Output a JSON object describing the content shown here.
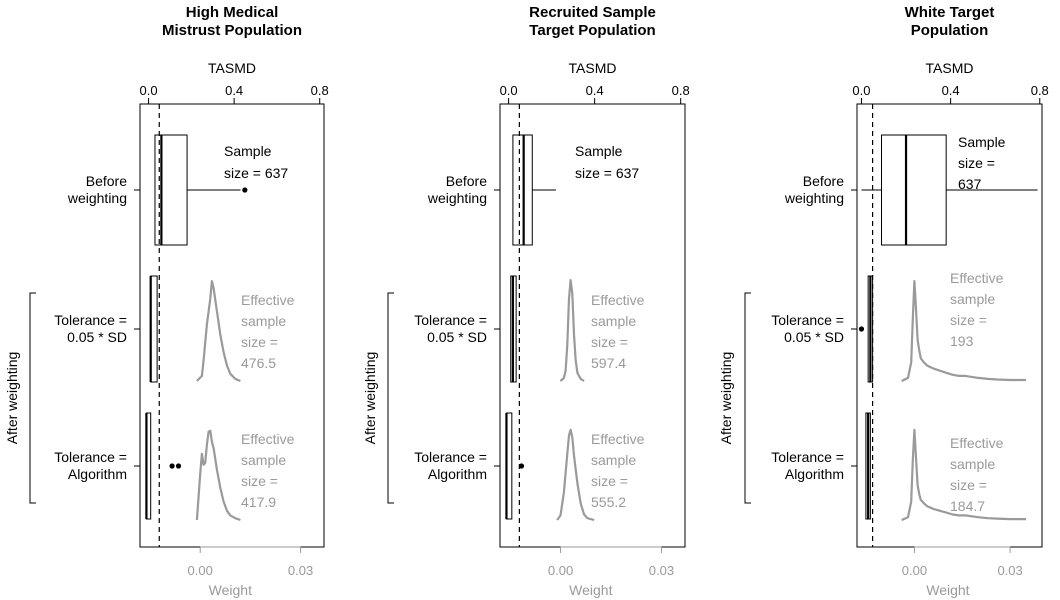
{
  "chart_data": [
    {
      "type": "boxplot",
      "title": [
        "High Medical",
        "Mistrust Population"
      ],
      "top_axis": {
        "label": "TASMD",
        "ticks": [
          "0.0",
          "0.4",
          "0.8"
        ],
        "ticks_num": [
          0.0,
          0.4,
          0.8
        ],
        "range": [
          -0.04,
          0.82
        ]
      },
      "bottom_axis": {
        "label": "Weight",
        "ticks": [
          "0.00",
          "0.03"
        ],
        "ticks_num": [
          0.0,
          0.03
        ],
        "range": [
          -0.018,
          0.037
        ]
      },
      "threshold_line": 0.05,
      "rows": [
        {
          "label": [
            "Before",
            "weighting"
          ],
          "box": {
            "whisker_low": 0.03,
            "q1": 0.03,
            "median": 0.06,
            "q3": 0.18,
            "whisker_high": 0.43
          },
          "outliers": [
            0.45
          ],
          "annotation": [
            "Sample",
            "size = 637"
          ]
        },
        {
          "label": [
            "Tolerance =",
            "0.05 * SD"
          ],
          "box": {
            "whisker_low": 0.01,
            "q1": 0.01,
            "median": 0.01,
            "q3": 0.04,
            "whisker_high": 0.04
          },
          "outliers": [],
          "annotation": [
            "Effective",
            "sample",
            "size =",
            "476.5"
          ],
          "density": {
            "x": [
              -0.001,
              0.0005,
              0.001,
              0.002,
              0.003,
              0.0035,
              0.004,
              0.005,
              0.006,
              0.007,
              0.008,
              0.009,
              0.0105,
              0.012
            ],
            "y": [
              0.0,
              0.05,
              0.2,
              0.55,
              0.8,
              0.97,
              0.9,
              0.68,
              0.45,
              0.28,
              0.15,
              0.07,
              0.02,
              0.0
            ]
          }
        },
        {
          "label": [
            "Tolerance =",
            "Algorithm"
          ],
          "box": {
            "whisker_low": -0.01,
            "q1": -0.01,
            "median": -0.01,
            "q3": 0.01,
            "whisker_high": 0.01
          },
          "outliers": [
            0.11,
            0.14
          ],
          "annotation": [
            "Effective",
            "sample",
            "size =",
            "417.9"
          ],
          "density": {
            "x": [
              -0.001,
              0.0,
              0.0005,
              0.001,
              0.0015,
              0.002,
              0.0025,
              0.003,
              0.0035,
              0.004,
              0.005,
              0.006,
              0.007,
              0.008,
              0.009,
              0.0105,
              0.012
            ],
            "y": [
              0.0,
              0.5,
              0.72,
              0.6,
              0.62,
              0.82,
              0.96,
              0.97,
              0.85,
              0.78,
              0.55,
              0.35,
              0.2,
              0.1,
              0.05,
              0.02,
              0.0
            ]
          }
        }
      ]
    },
    {
      "type": "boxplot",
      "title": [
        "Recruited Sample",
        "Target Population"
      ],
      "top_axis": {
        "label": "TASMD",
        "ticks": [
          "0.0",
          "0.4",
          "0.8"
        ],
        "ticks_num": [
          0.0,
          0.4,
          0.8
        ],
        "range": [
          -0.04,
          0.82
        ]
      },
      "bottom_axis": {
        "label": "Weight",
        "ticks": [
          "0.00",
          "0.03"
        ],
        "ticks_num": [
          0.0,
          0.03
        ],
        "range": [
          -0.018,
          0.037
        ]
      },
      "threshold_line": 0.05,
      "rows": [
        {
          "label": [
            "Before",
            "weighting"
          ],
          "box": {
            "whisker_low": 0.02,
            "q1": 0.02,
            "median": 0.07,
            "q3": 0.11,
            "whisker_high": 0.22
          },
          "outliers": [],
          "annotation": [
            "Sample",
            "size = 637"
          ]
        },
        {
          "label": [
            "Tolerance =",
            "0.05 * SD"
          ],
          "box": {
            "whisker_low": 0.01,
            "q1": 0.01,
            "median": 0.02,
            "q3": 0.035,
            "whisker_high": 0.035
          },
          "outliers": [],
          "annotation": [
            "Effective",
            "sample",
            "size =",
            "597.4"
          ],
          "density": {
            "x": [
              0.0,
              0.001,
              0.0015,
              0.002,
              0.0025,
              0.003,
              0.0035,
              0.004,
              0.0045,
              0.005,
              0.006,
              0.007
            ],
            "y": [
              0.0,
              0.03,
              0.1,
              0.35,
              0.8,
              0.98,
              0.85,
              0.45,
              0.2,
              0.08,
              0.02,
              0.0
            ]
          }
        },
        {
          "label": [
            "Tolerance =",
            "Algorithm"
          ],
          "box": {
            "whisker_low": -0.01,
            "q1": -0.01,
            "median": -0.01,
            "q3": 0.015,
            "whisker_high": 0.015
          },
          "outliers": [
            0.06
          ],
          "annotation": [
            "Effective",
            "sample",
            "size =",
            "555.2"
          ],
          "density": {
            "x": [
              -0.001,
              0.0,
              0.001,
              0.002,
              0.0025,
              0.003,
              0.0035,
              0.004,
              0.005,
              0.006,
              0.007,
              0.008,
              0.01
            ],
            "y": [
              0.0,
              0.05,
              0.3,
              0.72,
              0.92,
              0.98,
              0.9,
              0.7,
              0.4,
              0.18,
              0.06,
              0.02,
              0.0
            ]
          }
        }
      ]
    },
    {
      "type": "boxplot",
      "title": [
        "White Target",
        "Population"
      ],
      "top_axis": {
        "label": "TASMD",
        "ticks": [
          "0.0",
          "0.4",
          "0.8"
        ],
        "ticks_num": [
          0.0,
          0.4,
          0.8
        ],
        "range": [
          -0.02,
          0.81
        ]
      },
      "bottom_axis": {
        "label": "Weight",
        "ticks": [
          "0.00",
          "0.03"
        ],
        "ticks_num": [
          0.0,
          0.03
        ],
        "range": [
          -0.018,
          0.04
        ]
      },
      "threshold_line": 0.05,
      "rows": [
        {
          "label": [
            "Before",
            "weighting"
          ],
          "box": {
            "whisker_low": 0.0,
            "q1": 0.09,
            "median": 0.2,
            "q3": 0.38,
            "whisker_high": 0.79
          },
          "outliers": [],
          "annotation": [
            "Sample",
            "size =",
            "637"
          ]
        },
        {
          "label": [
            "Tolerance =",
            "0.05 * SD"
          ],
          "box": {
            "whisker_low": 0.03,
            "q1": 0.03,
            "median": 0.04,
            "q3": 0.05,
            "whisker_high": 0.05
          },
          "outliers": [
            0.0
          ],
          "annotation": [
            "Effective",
            "sample",
            "size =",
            "193"
          ],
          "density": {
            "x": [
              -0.004,
              -0.002,
              -0.001,
              -0.0005,
              0.0,
              0.0005,
              0.001,
              0.0015,
              0.002,
              0.003,
              0.004,
              0.006,
              0.008,
              0.01,
              0.012,
              0.014,
              0.016,
              0.018,
              0.02,
              0.023,
              0.026,
              0.03,
              0.035
            ],
            "y": [
              0.0,
              0.03,
              0.18,
              0.6,
              0.97,
              0.7,
              0.4,
              0.3,
              0.22,
              0.18,
              0.15,
              0.12,
              0.1,
              0.08,
              0.06,
              0.05,
              0.05,
              0.04,
              0.03,
              0.02,
              0.015,
              0.01,
              0.01
            ]
          }
        },
        {
          "label": [
            "Tolerance =",
            "Algorithm"
          ],
          "box": {
            "whisker_low": 0.02,
            "q1": 0.02,
            "median": 0.03,
            "q3": 0.04,
            "whisker_high": 0.04
          },
          "outliers": [],
          "annotation": [
            "Effective",
            "sample",
            "size =",
            "184.7"
          ],
          "density": {
            "x": [
              -0.004,
              -0.002,
              -0.001,
              -0.0005,
              0.0,
              0.0005,
              0.001,
              0.0015,
              0.002,
              0.003,
              0.004,
              0.006,
              0.008,
              0.01,
              0.012,
              0.014,
              0.016,
              0.018,
              0.02,
              0.023,
              0.026,
              0.03,
              0.035
            ],
            "y": [
              0.0,
              0.03,
              0.2,
              0.65,
              0.98,
              0.68,
              0.38,
              0.28,
              0.22,
              0.18,
              0.15,
              0.12,
              0.1,
              0.08,
              0.06,
              0.05,
              0.05,
              0.04,
              0.03,
              0.02,
              0.015,
              0.01,
              0.01
            ]
          }
        }
      ]
    }
  ],
  "group_label": "After weighting",
  "colors": {
    "box": "#000000",
    "density": "#9a9a9a",
    "gray_text": "#9a9a9a"
  }
}
